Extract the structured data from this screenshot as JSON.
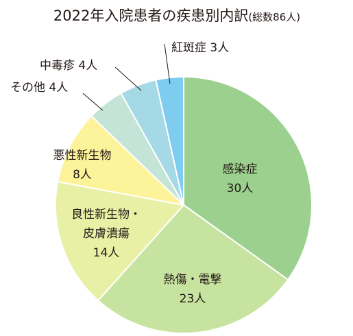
{
  "chart_data": {
    "type": "pie",
    "title": "2022年入院患者の疾患別内訳",
    "subtitle": "(総数86人)",
    "slices": [
      {
        "label": "感染症",
        "value": 30,
        "value_text": "30人",
        "color": "#9bd08e"
      },
      {
        "label": "熱傷・電撃",
        "value": 23,
        "value_text": "23人",
        "color": "#c7e3a0"
      },
      {
        "label": "良性新生物・皮膚潰瘍",
        "label_lines": [
          "良性新生物・",
          "皮膚潰瘍"
        ],
        "value": 14,
        "value_text": "14人",
        "color": "#e7f0a5"
      },
      {
        "label": "悪性新生物",
        "value": 8,
        "value_text": "8人",
        "color": "#fdf39a"
      },
      {
        "label": "その他",
        "value": 4,
        "value_text": "その他 4人",
        "color": "#c3e4d6"
      },
      {
        "label": "中毒疹",
        "value": 4,
        "value_text": "中毒疹 4人",
        "color": "#a6d9e6"
      },
      {
        "label": "紅斑症",
        "value": 3,
        "value_text": "紅斑症 3人",
        "color": "#7ecdf0"
      }
    ],
    "total": 86,
    "start": "12 o'clock",
    "direction": "clockwise"
  }
}
